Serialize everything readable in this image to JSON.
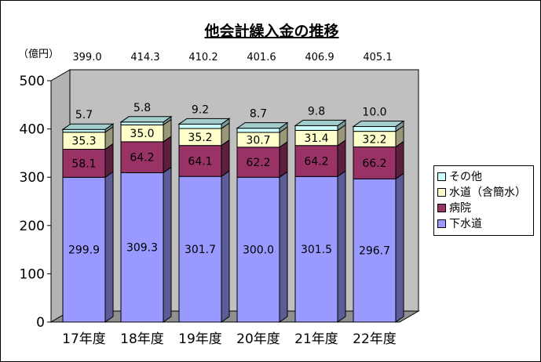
{
  "chart_data": {
    "type": "bar",
    "stacked": true,
    "title": "他会計繰入金の推移",
    "unit_label": "（億円）",
    "categories": [
      "17年度",
      "18年度",
      "19年度",
      "20年度",
      "21年度",
      "22年度"
    ],
    "ylim": [
      0,
      500
    ],
    "yticks": [
      "0",
      "100",
      "200",
      "300",
      "400",
      "500"
    ],
    "totals": [
      "399.0",
      "414.3",
      "410.2",
      "401.6",
      "406.9",
      "405.1"
    ],
    "series": [
      {
        "name": "下水道",
        "color": "#9999ff",
        "values": [
          299.9,
          309.3,
          301.7,
          300.0,
          301.5,
          296.7
        ],
        "labels": [
          "299.9",
          "309.3",
          "301.7",
          "300.0",
          "301.5",
          "296.7"
        ]
      },
      {
        "name": "病院",
        "color": "#993366",
        "values": [
          58.1,
          64.2,
          64.1,
          62.2,
          64.2,
          66.2
        ],
        "labels": [
          "58.1",
          "64.2",
          "64.1",
          "62.2",
          "64.2",
          "66.2"
        ]
      },
      {
        "name": "水道（含簡水）",
        "color": "#ffffcc",
        "values": [
          35.3,
          35.0,
          35.2,
          30.7,
          31.4,
          32.2
        ],
        "labels": [
          "35.3",
          "35.0",
          "35.2",
          "30.7",
          "31.4",
          "32.2"
        ]
      },
      {
        "name": "その他",
        "color": "#ccffff",
        "values": [
          5.7,
          5.8,
          9.2,
          8.7,
          9.8,
          10.0
        ],
        "labels": [
          "5.7",
          "5.8",
          "9.2",
          "8.7",
          "9.8",
          "10.0"
        ]
      }
    ],
    "legend_order": [
      3,
      2,
      1,
      0
    ],
    "legend": "right",
    "grid": false
  }
}
